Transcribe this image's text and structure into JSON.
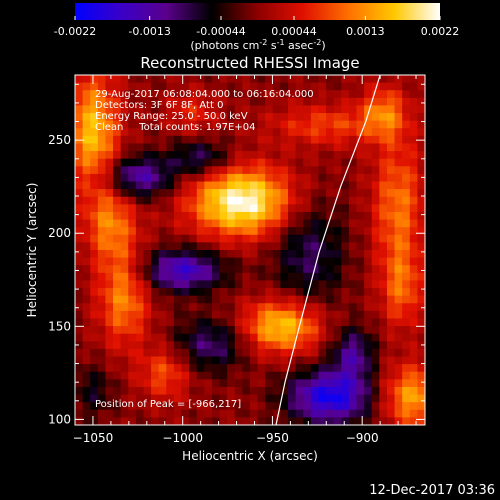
{
  "colorbar": {
    "min_label": "-0.0022",
    "ticks": [
      "-0.0022",
      "-0.0013",
      "-0.00044",
      "0.00044",
      "0.0013",
      "0.0022"
    ],
    "tick_values": [
      -0.0022,
      -0.0013,
      -0.00044,
      0.00044,
      0.0013,
      0.0022
    ],
    "range": [
      -0.0022,
      0.0022
    ],
    "units_prefix": "(photons cm",
    "units_exp1": "-2",
    "units_mid": " s",
    "units_exp2": "-1",
    "units_mid2": " asec",
    "units_exp3": "-2",
    "units_suffix": ")",
    "colors": [
      "#0000ff",
      "#3a00c8",
      "#5a008c",
      "#000000",
      "#8c0000",
      "#e01000",
      "#ff7000",
      "#ffc800",
      "#ffffff"
    ]
  },
  "chart_data": {
    "type": "heatmap",
    "title": "Reconstructed RHESSI Image",
    "xlabel": "Heliocentric X (arcsec)",
    "ylabel": "Heliocentric Y (arcsec)",
    "xlim": [
      -1060,
      -865
    ],
    "ylim": [
      97,
      285
    ],
    "x_ticks": [
      -1050,
      -1000,
      -950,
      -900
    ],
    "x_tick_labels": [
      "−1050",
      "−1000",
      "−950",
      "−900"
    ],
    "y_ticks": [
      100,
      150,
      200,
      250
    ],
    "y_tick_labels": [
      "100",
      "150",
      "200",
      "250"
    ],
    "blobs": [
      {
        "x": -967,
        "y": 217,
        "sx": 20,
        "sy": 13,
        "value": 0.0022
      },
      {
        "x": -945,
        "y": 150,
        "sx": 15,
        "sy": 10,
        "value": 0.0017
      },
      {
        "x": -1050,
        "y": 255,
        "sx": 10,
        "sy": 22,
        "value": 0.0016
      },
      {
        "x": -1040,
        "y": 205,
        "sx": 10,
        "sy": 15,
        "value": 0.0011
      },
      {
        "x": -1033,
        "y": 165,
        "sx": 10,
        "sy": 18,
        "value": 0.0012
      },
      {
        "x": -1010,
        "y": 125,
        "sx": 10,
        "sy": 10,
        "value": 0.0009
      },
      {
        "x": -888,
        "y": 265,
        "sx": 9,
        "sy": 10,
        "value": 0.001
      },
      {
        "x": -880,
        "y": 215,
        "sx": 10,
        "sy": 25,
        "value": 0.0011
      },
      {
        "x": -878,
        "y": 170,
        "sx": 8,
        "sy": 15,
        "value": 0.0009
      },
      {
        "x": -872,
        "y": 112,
        "sx": 12,
        "sy": 12,
        "value": 0.0014
      },
      {
        "x": -920,
        "y": 258,
        "sx": 22,
        "sy": 8,
        "value": 0.0008
      },
      {
        "x": -995,
        "y": 265,
        "sx": 10,
        "sy": 8,
        "value": 0.0006
      },
      {
        "x": -1025,
        "y": 230,
        "sx": 14,
        "sy": 8,
        "value": -0.0014
      },
      {
        "x": -990,
        "y": 240,
        "sx": 12,
        "sy": 7,
        "value": -0.001
      },
      {
        "x": -1000,
        "y": 180,
        "sx": 16,
        "sy": 8,
        "value": -0.0016
      },
      {
        "x": -930,
        "y": 190,
        "sx": 14,
        "sy": 20,
        "value": -0.0009
      },
      {
        "x": -985,
        "y": 140,
        "sx": 14,
        "sy": 10,
        "value": -0.001
      },
      {
        "x": -918,
        "y": 112,
        "sx": 16,
        "sy": 10,
        "value": -0.002
      },
      {
        "x": -905,
        "y": 135,
        "sx": 8,
        "sy": 10,
        "value": -0.0012
      },
      {
        "x": -1050,
        "y": 115,
        "sx": 8,
        "sy": 10,
        "value": -0.0006
      }
    ],
    "limb_curve": {
      "x": [
        -948,
        -943,
        -935,
        -924,
        -912,
        -898,
        -890
      ],
      "y": [
        97,
        120,
        150,
        190,
        225,
        260,
        285
      ]
    }
  },
  "annotations": {
    "time_range": "29-Aug-2017 06:08:04.000 to 06:16:04.000",
    "detectors": "Detectors: 3F 6F 8F, Att 0",
    "energy": "Energy Range: 25.0 - 50.0 keV",
    "clean": "Clean     Total counts: 1.97E+04",
    "peak": "Position of Peak = [-966,217]"
  },
  "footer": {
    "timestamp": "12-Dec-2017 03:36"
  }
}
